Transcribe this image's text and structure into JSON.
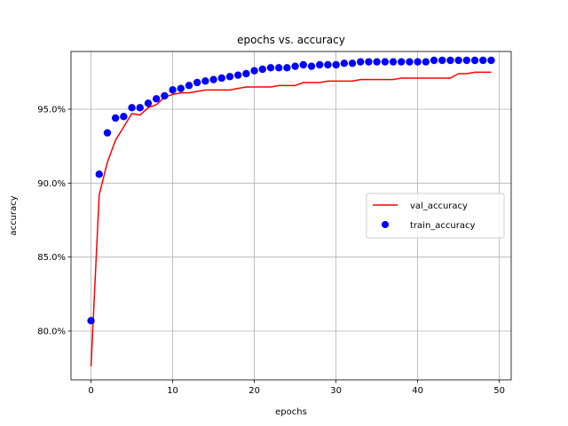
{
  "chart_data": {
    "type": "line",
    "title": "epochs vs. accuracy",
    "xlabel": "epochs",
    "ylabel": "accuracy",
    "xlim": [
      -2.45,
      51.45
    ],
    "ylim": [
      76.7,
      98.9
    ],
    "xticks": [
      0,
      10,
      20,
      30,
      40,
      50
    ],
    "xtick_labels": [
      "0",
      "10",
      "20",
      "30",
      "40",
      "50"
    ],
    "yticks": [
      80,
      85,
      90,
      95
    ],
    "ytick_labels": [
      "80.0%",
      "85.0%",
      "90.0%",
      "95.0%"
    ],
    "grid": true,
    "legend_position": "center-right",
    "series": [
      {
        "name": "val_accuracy",
        "kind": "line",
        "color": "#ff0000",
        "x": [
          0,
          1,
          2,
          3,
          4,
          5,
          6,
          7,
          8,
          9,
          10,
          11,
          12,
          13,
          14,
          15,
          16,
          17,
          18,
          19,
          20,
          21,
          22,
          23,
          24,
          25,
          26,
          27,
          28,
          29,
          30,
          31,
          32,
          33,
          34,
          35,
          36,
          37,
          38,
          39,
          40,
          41,
          42,
          43,
          44,
          45,
          46,
          47,
          48,
          49
        ],
        "y": [
          77.6,
          89.2,
          91.4,
          92.9,
          93.8,
          94.7,
          94.6,
          95.1,
          95.3,
          95.8,
          96.0,
          96.1,
          96.1,
          96.2,
          96.3,
          96.3,
          96.3,
          96.3,
          96.4,
          96.5,
          96.5,
          96.5,
          96.5,
          96.6,
          96.6,
          96.6,
          96.8,
          96.8,
          96.8,
          96.9,
          96.9,
          96.9,
          96.9,
          97.0,
          97.0,
          97.0,
          97.0,
          97.0,
          97.1,
          97.1,
          97.1,
          97.1,
          97.1,
          97.1,
          97.1,
          97.4,
          97.4,
          97.5,
          97.5,
          97.5
        ]
      },
      {
        "name": "train_accuracy",
        "kind": "scatter",
        "color": "#0000ff",
        "x": [
          0,
          1,
          2,
          3,
          4,
          5,
          6,
          7,
          8,
          9,
          10,
          11,
          12,
          13,
          14,
          15,
          16,
          17,
          18,
          19,
          20,
          21,
          22,
          23,
          24,
          25,
          26,
          27,
          28,
          29,
          30,
          31,
          32,
          33,
          34,
          35,
          36,
          37,
          38,
          39,
          40,
          41,
          42,
          43,
          44,
          45,
          46,
          47,
          48,
          49
        ],
        "y": [
          80.7,
          90.6,
          93.4,
          94.4,
          94.5,
          95.1,
          95.1,
          95.4,
          95.7,
          95.9,
          96.3,
          96.4,
          96.6,
          96.8,
          96.9,
          97.0,
          97.1,
          97.2,
          97.3,
          97.4,
          97.6,
          97.7,
          97.8,
          97.8,
          97.8,
          97.9,
          98.0,
          97.9,
          98.0,
          98.0,
          98.0,
          98.1,
          98.1,
          98.2,
          98.2,
          98.2,
          98.2,
          98.2,
          98.2,
          98.2,
          98.2,
          98.2,
          98.3,
          98.3,
          98.3,
          98.3,
          98.3,
          98.3,
          98.3,
          98.3
        ]
      }
    ]
  }
}
